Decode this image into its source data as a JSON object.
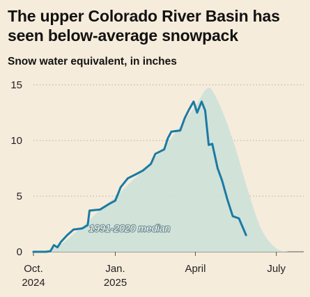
{
  "title": "The upper Colorado River Basin has seen below-average snowpack",
  "subtitle": "Snow water equivalent, in inches",
  "colors": {
    "background": "#f6ecdb",
    "median_fill": "#cfe2d9",
    "current_line": "#1a7aa3",
    "grid": "#b5aa98"
  },
  "chart_data": {
    "type": "area",
    "ylim": [
      0,
      15
    ],
    "yticks": [
      0,
      5,
      10,
      15
    ],
    "x_axis": {
      "start": "2024-10-01",
      "end": "2025-07-31",
      "ticks": [
        {
          "date": "2024-10-01",
          "label": "Oct.",
          "sublabel": "2024"
        },
        {
          "date": "2025-01-01",
          "label": "Jan.",
          "sublabel": "2025"
        },
        {
          "date": "2025-04-01",
          "label": "April",
          "sublabel": ""
        },
        {
          "date": "2025-07-01",
          "label": "July",
          "sublabel": ""
        }
      ]
    },
    "grid": true,
    "series": [
      {
        "name": "1991-2020 median",
        "style": "area",
        "points": [
          [
            "2024-10-01",
            0
          ],
          [
            "2024-10-15",
            0.1
          ],
          [
            "2024-11-01",
            0.7
          ],
          [
            "2024-11-15",
            1.6
          ],
          [
            "2024-12-01",
            2.7
          ],
          [
            "2024-12-15",
            3.8
          ],
          [
            "2025-01-01",
            4.9
          ],
          [
            "2025-01-15",
            6.0
          ],
          [
            "2025-02-01",
            7.3
          ],
          [
            "2025-02-15",
            8.5
          ],
          [
            "2025-03-01",
            9.8
          ],
          [
            "2025-03-15",
            11.3
          ],
          [
            "2025-04-01",
            13.1
          ],
          [
            "2025-04-10",
            14.3
          ],
          [
            "2025-04-15",
            14.7
          ],
          [
            "2025-04-20",
            14.5
          ],
          [
            "2025-05-01",
            12.7
          ],
          [
            "2025-05-15",
            9.6
          ],
          [
            "2025-06-01",
            5.0
          ],
          [
            "2025-06-15",
            1.9
          ],
          [
            "2025-07-01",
            0.3
          ],
          [
            "2025-07-15",
            0
          ]
        ]
      },
      {
        "name": "",
        "style": "line",
        "points": [
          [
            "2024-10-01",
            0
          ],
          [
            "2024-10-15",
            0
          ],
          [
            "2024-10-20",
            0.05
          ],
          [
            "2024-10-24",
            0.6
          ],
          [
            "2024-10-28",
            0.4
          ],
          [
            "2024-11-01",
            0.9
          ],
          [
            "2024-11-08",
            1.5
          ],
          [
            "2024-11-15",
            2.0
          ],
          [
            "2024-11-25",
            2.1
          ],
          [
            "2024-12-01",
            2.4
          ],
          [
            "2024-12-03",
            3.7
          ],
          [
            "2024-12-15",
            3.8
          ],
          [
            "2024-12-25",
            4.3
          ],
          [
            "2025-01-01",
            4.6
          ],
          [
            "2025-01-07",
            5.8
          ],
          [
            "2025-01-15",
            6.6
          ],
          [
            "2025-01-25",
            7.0
          ],
          [
            "2025-02-01",
            7.3
          ],
          [
            "2025-02-10",
            7.9
          ],
          [
            "2025-02-15",
            8.8
          ],
          [
            "2025-02-25",
            9.2
          ],
          [
            "2025-03-01",
            10.2
          ],
          [
            "2025-03-05",
            10.8
          ],
          [
            "2025-03-15",
            10.9
          ],
          [
            "2025-03-20",
            12.0
          ],
          [
            "2025-03-25",
            12.8
          ],
          [
            "2025-03-30",
            13.5
          ],
          [
            "2025-04-03",
            12.5
          ],
          [
            "2025-04-08",
            13.5
          ],
          [
            "2025-04-12",
            12.7
          ],
          [
            "2025-04-16",
            9.6
          ],
          [
            "2025-04-20",
            9.7
          ],
          [
            "2025-04-26",
            7.5
          ],
          [
            "2025-05-01",
            6.4
          ],
          [
            "2025-05-07",
            4.7
          ],
          [
            "2025-05-13",
            3.2
          ],
          [
            "2025-05-20",
            3.0
          ],
          [
            "2025-05-28",
            1.5
          ]
        ]
      }
    ],
    "annotations": [
      {
        "text": "1991-2020 median",
        "date": "2025-01-17",
        "y": 1.8
      }
    ]
  }
}
